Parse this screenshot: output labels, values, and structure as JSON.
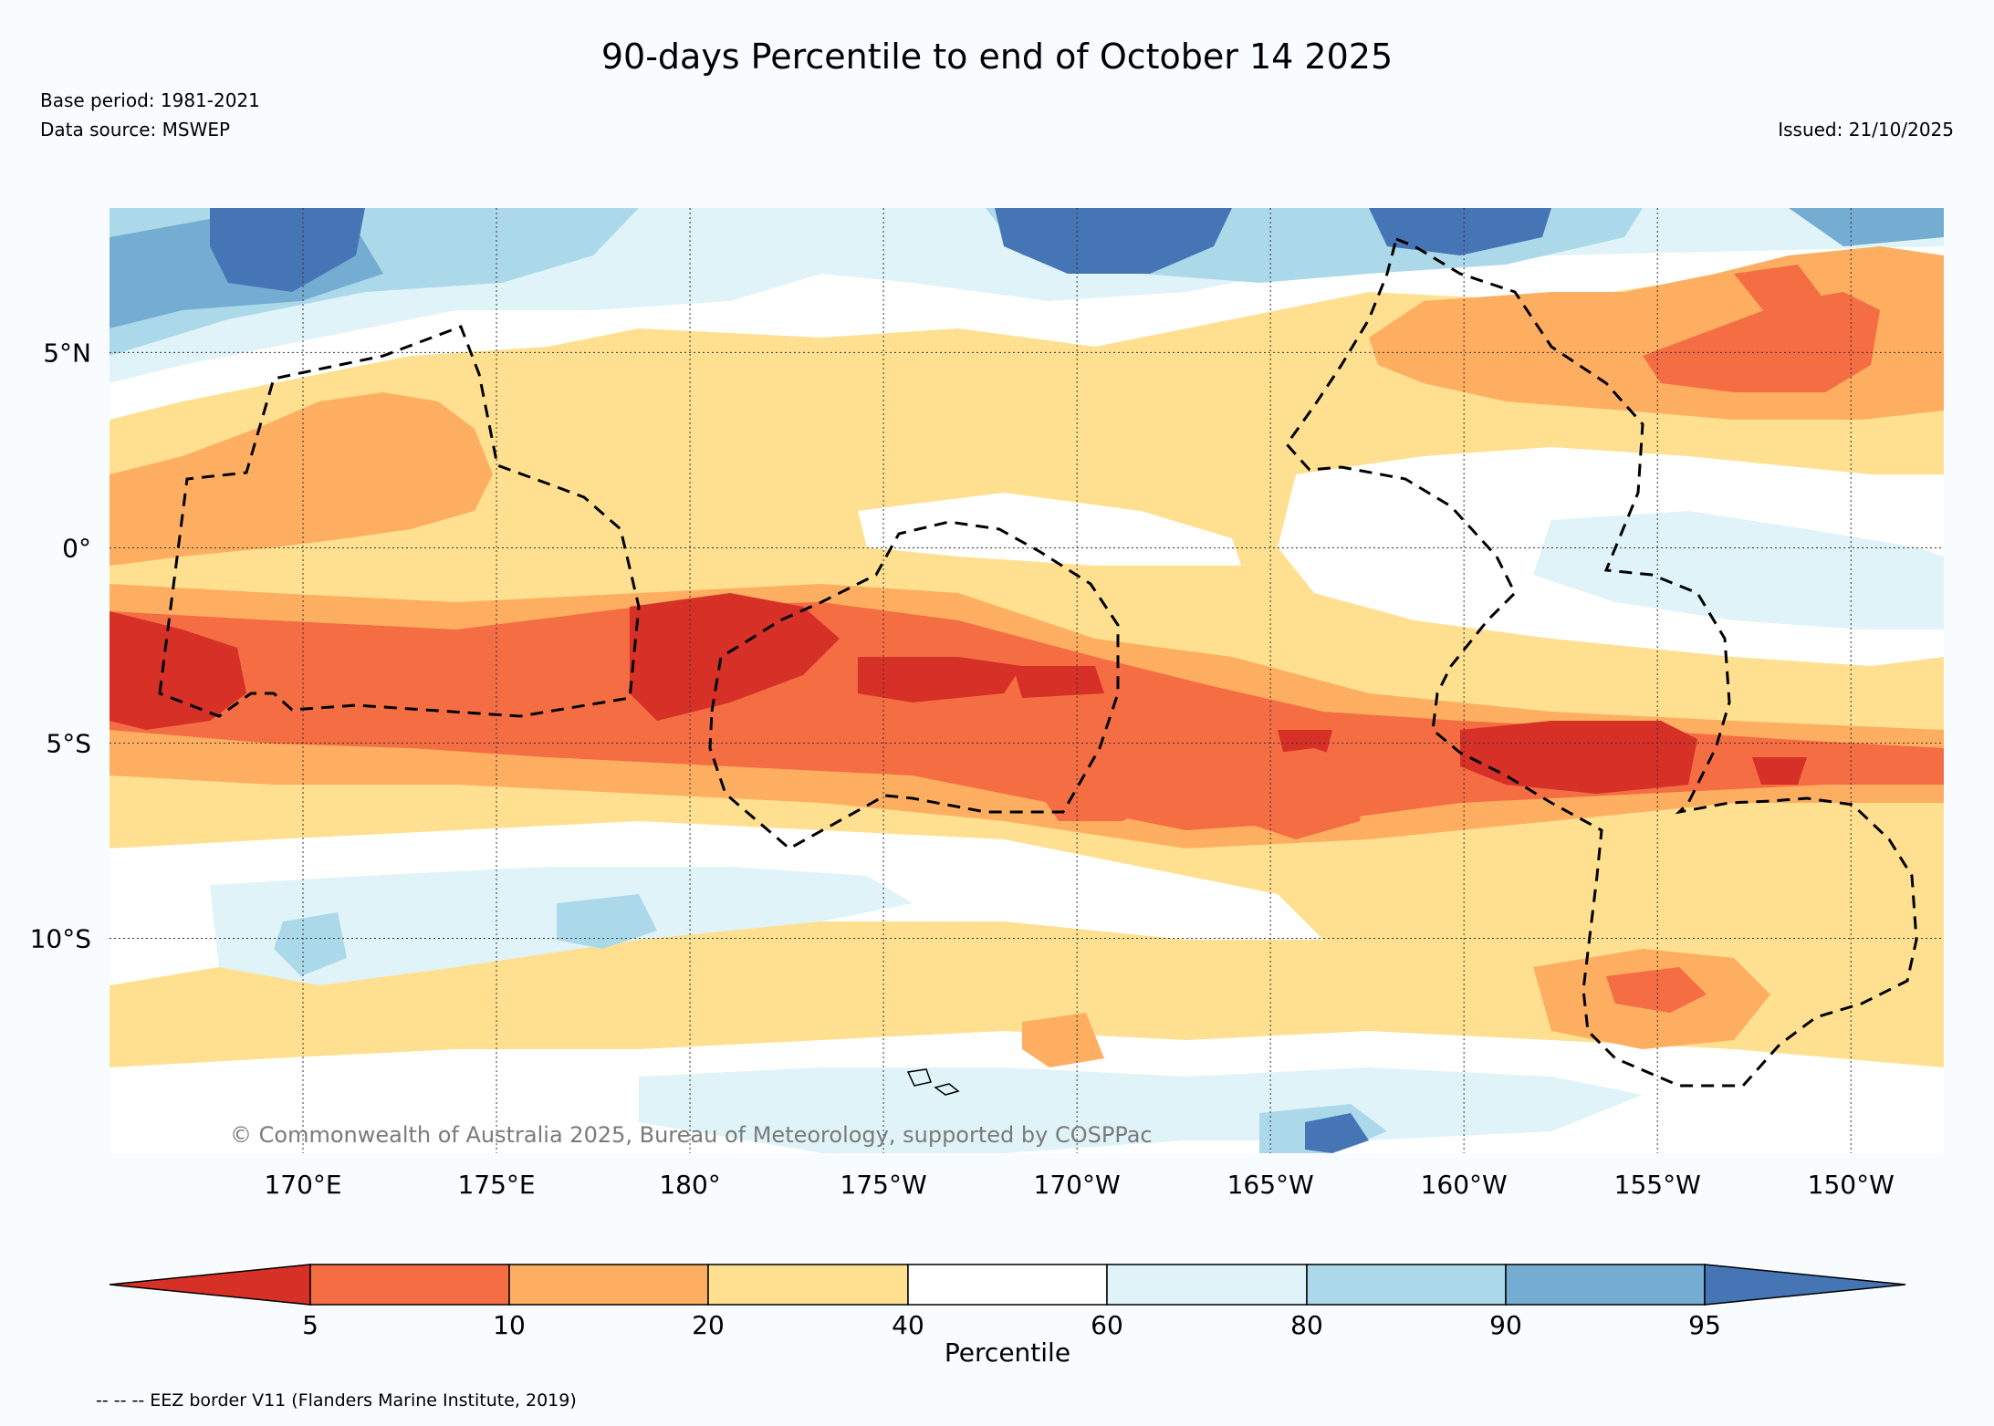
{
  "header": {
    "title": "90-days Percentile to end of October 14 2025",
    "base_period": "Base period: 1981-2021",
    "data_source": "Data source: MSWEP",
    "issued": "Issued: 21/10/2025"
  },
  "map": {
    "lat_labels": [
      "5°N",
      "0°",
      "5°S",
      "10°S"
    ],
    "lat_values": [
      5,
      0,
      -5,
      -10
    ],
    "lon_labels": [
      "170°E",
      "175°E",
      "180°",
      "175°W",
      "170°W",
      "165°W",
      "160°W",
      "155°W",
      "150°W"
    ],
    "lon_values": [
      170,
      175,
      180,
      185,
      190,
      195,
      200,
      205,
      210
    ],
    "lon_range": [
      165,
      212.4
    ],
    "lat_range": [
      -15.5,
      8.7
    ],
    "copyright": "© Commonwealth of Australia 2025, Bureau of Meteorology, supported by COSPPac"
  },
  "colorbar": {
    "title": "Percentile",
    "ticks": [
      "5",
      "10",
      "20",
      "40",
      "60",
      "80",
      "90",
      "95"
    ],
    "colors": {
      "below_5": "#d73027",
      "p5_10": "#f46d43",
      "p10_20": "#fdae61",
      "p20_40": "#fee090",
      "p40_60": "#ffffff",
      "p60_80": "#e0f3f8",
      "p80_90": "#abd9e9",
      "p90_95": "#74add1",
      "above_95": "#4575b4"
    }
  },
  "footnote": "-- -- -- EEZ border V11 (Flanders Marine Institute, 2019)"
}
